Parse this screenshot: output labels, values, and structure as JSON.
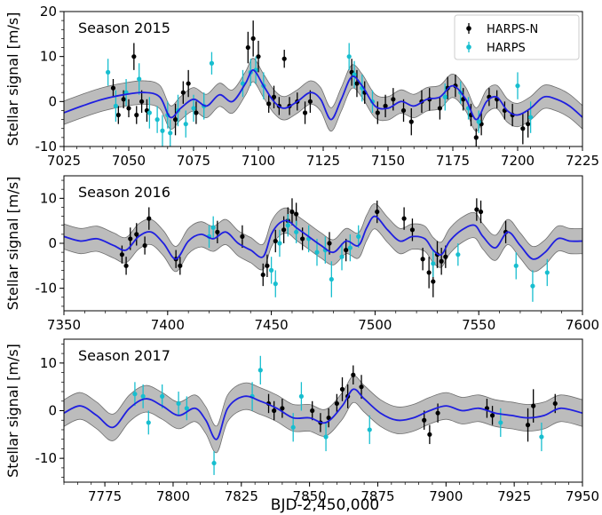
{
  "figure": {
    "xlabel": "BJD-2,450,000",
    "legend": [
      {
        "name": "HARPS-N",
        "color": "#000000"
      },
      {
        "name": "HARPS",
        "color": "#17becf"
      }
    ]
  },
  "colors": {
    "harpsn": "#000000",
    "harps": "#17becf",
    "model": "#1f1fe0",
    "band": "#a6a6a6"
  },
  "chart_data": [
    {
      "type": "scatter",
      "title": "Season 2015",
      "ylabel": "Stellar signal [m/s]",
      "xlim": [
        7025,
        7225
      ],
      "ylim": [
        -10,
        20
      ],
      "xticks": [
        7025,
        7050,
        7075,
        7100,
        7125,
        7150,
        7175,
        7200,
        7225
      ],
      "yticks": [
        -10,
        0,
        10,
        20
      ],
      "legend_position": "top-right",
      "model": {
        "x": [
          7025,
          7032,
          7040,
          7048,
          7056,
          7062,
          7066,
          7070,
          7075,
          7080,
          7085,
          7090,
          7095,
          7098,
          7102,
          7106,
          7110,
          7115,
          7120,
          7124,
          7128,
          7132,
          7136,
          7140,
          7145,
          7150,
          7155,
          7160,
          7165,
          7170,
          7175,
          7180,
          7184,
          7188,
          7192,
          7196,
          7200,
          7205,
          7210,
          7215,
          7220,
          7225
        ],
        "y": [
          -2.5,
          -1.0,
          0.5,
          1.5,
          2.0,
          1.0,
          -3.5,
          -1.5,
          0.5,
          -1.0,
          1.5,
          0.0,
          4.0,
          7.0,
          3.5,
          0.0,
          -1.5,
          0.0,
          2.0,
          0.5,
          -4.0,
          0.5,
          5.5,
          3.5,
          -1.0,
          -1.5,
          0.0,
          -1.0,
          0.5,
          1.0,
          3.5,
          0.5,
          -4.0,
          0.0,
          1.0,
          -2.0,
          -3.0,
          -1.5,
          1.0,
          0.5,
          -1.0,
          -3.5
        ],
        "band": 2.6
      },
      "series": [
        {
          "name": "HARPS-N",
          "x": [
            7044,
            7046,
            7048,
            7050,
            7052,
            7053,
            7055,
            7057,
            7068,
            7071,
            7073,
            7076,
            7096,
            7098,
            7100,
            7104,
            7106,
            7108,
            7110,
            7112,
            7115,
            7118,
            7120,
            7136,
            7138,
            7141,
            7146,
            7149,
            7152,
            7156,
            7159,
            7163,
            7166,
            7170,
            7173,
            7176,
            7179,
            7182,
            7184,
            7186,
            7189,
            7192,
            7195,
            7198,
            7202,
            7204
          ],
          "y": [
            3.0,
            -3.0,
            0.5,
            -1.5,
            10.0,
            -3.0,
            0.0,
            -2.0,
            -4.0,
            2.0,
            4.0,
            -2.5,
            12.0,
            14.0,
            10.0,
            -0.5,
            1.0,
            -1.0,
            9.5,
            -1.0,
            0.0,
            -2.5,
            0.0,
            6.5,
            4.0,
            2.0,
            -2.5,
            -1.0,
            0.5,
            -2.0,
            -4.5,
            0.0,
            0.5,
            -1.5,
            3.0,
            3.5,
            0.5,
            -3.0,
            -8.0,
            -5.0,
            1.0,
            0.5,
            -2.0,
            -3.0,
            -6.0,
            -5.0
          ],
          "yerr": [
            2.0,
            2.0,
            2.0,
            2.0,
            3.0,
            2.0,
            2.5,
            2.5,
            3.5,
            2.5,
            3.0,
            2.5,
            3.5,
            4.0,
            3.5,
            2.0,
            2.5,
            2.0,
            2.0,
            2.0,
            2.0,
            2.5,
            2.5,
            3.0,
            3.0,
            2.5,
            2.5,
            2.5,
            2.5,
            2.5,
            3.0,
            2.5,
            2.5,
            2.5,
            2.5,
            2.5,
            2.5,
            2.5,
            2.0,
            2.5,
            2.0,
            2.0,
            2.0,
            2.5,
            3.5,
            3.0
          ]
        },
        {
          "name": "HARPS",
          "x": [
            7042,
            7045,
            7049,
            7054,
            7058,
            7061,
            7063,
            7065,
            7066,
            7069,
            7072,
            7075,
            7079,
            7082,
            7094,
            7097,
            7099,
            7102,
            7135,
            7137,
            7140,
            7144,
            7172,
            7178,
            7181,
            7185,
            7200,
            7205
          ],
          "y": [
            6.5,
            -1.0,
            2.0,
            5.0,
            -2.5,
            -4.0,
            -6.5,
            -3.0,
            -7.0,
            -2.0,
            -5.0,
            -1.5,
            -1.0,
            8.5,
            4.0,
            6.5,
            7.0,
            3.5,
            10.0,
            6.0,
            3.0,
            0.0,
            1.0,
            2.0,
            -1.5,
            -4.5,
            3.5,
            -3.5
          ],
          "yerr": [
            3.0,
            3.5,
            3.0,
            3.5,
            3.5,
            3.0,
            3.5,
            3.0,
            3.0,
            3.5,
            3.0,
            3.0,
            3.0,
            2.5,
            3.0,
            3.0,
            3.0,
            3.0,
            3.0,
            3.0,
            3.0,
            2.5,
            3.0,
            2.5,
            2.5,
            2.5,
            3.0,
            3.5
          ]
        }
      ]
    },
    {
      "type": "scatter",
      "title": "Season 2016",
      "ylabel": "Stellar signal [m/s]",
      "xlim": [
        7350,
        7600
      ],
      "ylim": [
        -15,
        15
      ],
      "xticks": [
        7350,
        7400,
        7450,
        7500,
        7550,
        7600
      ],
      "yticks": [
        -10,
        0,
        10
      ],
      "model": {
        "x": [
          7350,
          7358,
          7366,
          7374,
          7380,
          7386,
          7392,
          7398,
          7404,
          7410,
          7416,
          7422,
          7428,
          7434,
          7440,
          7446,
          7450,
          7454,
          7458,
          7462,
          7468,
          7474,
          7480,
          7486,
          7492,
          7496,
          7500,
          7506,
          7512,
          7518,
          7524,
          7528,
          7532,
          7536,
          7542,
          7548,
          7552,
          7558,
          7564,
          7570,
          7576,
          7582,
          7588,
          7594,
          7600
        ],
        "y": [
          1.5,
          0.5,
          1.0,
          -0.5,
          -1.5,
          1.5,
          2.5,
          0.0,
          -3.5,
          0.5,
          2.0,
          1.0,
          2.5,
          0.0,
          -1.5,
          -3.0,
          2.0,
          4.5,
          5.0,
          3.5,
          1.5,
          -0.5,
          -2.0,
          0.5,
          -0.5,
          3.5,
          6.0,
          3.0,
          0.5,
          1.5,
          1.0,
          -1.5,
          -2.5,
          0.5,
          3.0,
          4.0,
          1.5,
          -1.0,
          2.5,
          -0.5,
          -3.5,
          -2.0,
          1.0,
          0.5,
          0.5
        ],
        "band": 2.8
      },
      "series": [
        {
          "name": "HARPS-N",
          "x": [
            7378,
            7380,
            7382,
            7385,
            7389,
            7391,
            7404,
            7406,
            7424,
            7436,
            7446,
            7448,
            7452,
            7456,
            7458,
            7460,
            7462,
            7465,
            7478,
            7486,
            7501,
            7514,
            7518,
            7523,
            7526,
            7528,
            7530,
            7532,
            7534,
            7549,
            7551,
            7563
          ],
          "y": [
            -2.5,
            -5.0,
            1.0,
            2.0,
            -0.5,
            5.5,
            -3.5,
            -5.0,
            2.5,
            1.5,
            -7.0,
            -5.0,
            0.5,
            3.0,
            5.0,
            7.0,
            6.5,
            1.0,
            0.0,
            -1.5,
            7.0,
            5.5,
            3.0,
            -3.5,
            -6.5,
            -8.5,
            -2.5,
            -4.0,
            -3.0,
            7.5,
            7.0,
            2.5
          ],
          "yerr": [
            2.0,
            2.0,
            2.5,
            2.5,
            2.0,
            2.5,
            2.0,
            2.0,
            2.5,
            2.5,
            2.5,
            2.5,
            2.5,
            3.0,
            3.0,
            3.0,
            2.5,
            2.5,
            2.5,
            2.5,
            2.5,
            2.5,
            2.5,
            2.5,
            3.5,
            3.5,
            3.0,
            3.0,
            2.5,
            2.5,
            2.5,
            2.5
          ]
        },
        {
          "name": "HARPS",
          "x": [
            7420,
            7422,
            7450,
            7452,
            7454,
            7458,
            7462,
            7468,
            7472,
            7476,
            7479,
            7484,
            7488,
            7492,
            7528,
            7540,
            7568,
            7576,
            7583
          ],
          "y": [
            1.5,
            3.5,
            -6.0,
            -9.0,
            0.0,
            4.0,
            2.5,
            1.0,
            -2.0,
            -1.5,
            -8.0,
            -3.0,
            -1.0,
            1.5,
            -4.5,
            -2.5,
            -5.0,
            -9.5,
            -6.5
          ],
          "yerr": [
            2.5,
            2.5,
            3.0,
            3.0,
            3.0,
            2.5,
            2.5,
            3.0,
            3.0,
            3.0,
            4.0,
            3.0,
            3.0,
            2.5,
            3.0,
            2.5,
            3.0,
            3.5,
            3.0
          ]
        }
      ]
    },
    {
      "type": "scatter",
      "title": "Season 2017",
      "ylabel": "Stellar signal [m/s]",
      "xlim": [
        7760,
        7950
      ],
      "ylim": [
        -15,
        15
      ],
      "xticks": [
        7775,
        7800,
        7825,
        7850,
        7875,
        7900,
        7925,
        7950
      ],
      "yticks": [
        -10,
        0,
        10
      ],
      "model": {
        "x": [
          7760,
          7766,
          7772,
          7778,
          7784,
          7790,
          7796,
          7802,
          7808,
          7812,
          7816,
          7820,
          7826,
          7832,
          7838,
          7844,
          7850,
          7856,
          7862,
          7866,
          7870,
          7876,
          7882,
          7888,
          7894,
          7900,
          7906,
          7912,
          7918,
          7924,
          7930,
          7936,
          7942,
          7950
        ],
        "y": [
          -0.5,
          1.0,
          -1.0,
          -3.5,
          0.5,
          2.5,
          1.0,
          -1.0,
          0.5,
          -2.0,
          -6.0,
          0.5,
          3.0,
          2.0,
          0.5,
          -1.5,
          -1.5,
          -2.5,
          1.0,
          4.5,
          2.5,
          -0.5,
          -2.0,
          -1.5,
          0.0,
          1.0,
          0.0,
          0.5,
          -0.5,
          -1.0,
          -1.5,
          -1.0,
          0.5,
          -0.5
        ],
        "band": 2.8
      },
      "series": [
        {
          "name": "HARPS-N",
          "x": [
            7835,
            7837,
            7840,
            7851,
            7854,
            7857,
            7860,
            7862,
            7864,
            7866,
            7869,
            7892,
            7894,
            7897,
            7915,
            7917,
            7930,
            7932,
            7940
          ],
          "y": [
            1.5,
            0.0,
            0.5,
            0.0,
            -2.5,
            -1.5,
            1.5,
            4.5,
            3.0,
            7.5,
            5.0,
            -2.0,
            -5.0,
            -0.5,
            0.5,
            -1.0,
            -3.0,
            1.0,
            1.5
          ],
          "yerr": [
            2.0,
            2.0,
            2.0,
            2.0,
            2.0,
            2.0,
            2.0,
            2.5,
            2.5,
            2.0,
            2.5,
            2.0,
            2.0,
            2.0,
            2.0,
            2.0,
            3.5,
            3.5,
            2.0
          ]
        },
        {
          "name": "HARPS",
          "x": [
            7786,
            7789,
            7791,
            7796,
            7802,
            7805,
            7815,
            7829,
            7832,
            7844,
            7847,
            7856,
            7872,
            7920,
            7935
          ],
          "y": [
            3.5,
            3.0,
            -2.5,
            3.0,
            1.5,
            0.5,
            -11.0,
            3.0,
            8.5,
            -3.5,
            3.0,
            -5.5,
            -4.0,
            -2.5,
            -5.5
          ],
          "yerr": [
            2.5,
            2.5,
            2.5,
            2.5,
            2.5,
            2.5,
            2.5,
            3.0,
            3.0,
            3.0,
            3.0,
            3.0,
            3.0,
            3.0,
            3.0
          ]
        }
      ]
    }
  ]
}
